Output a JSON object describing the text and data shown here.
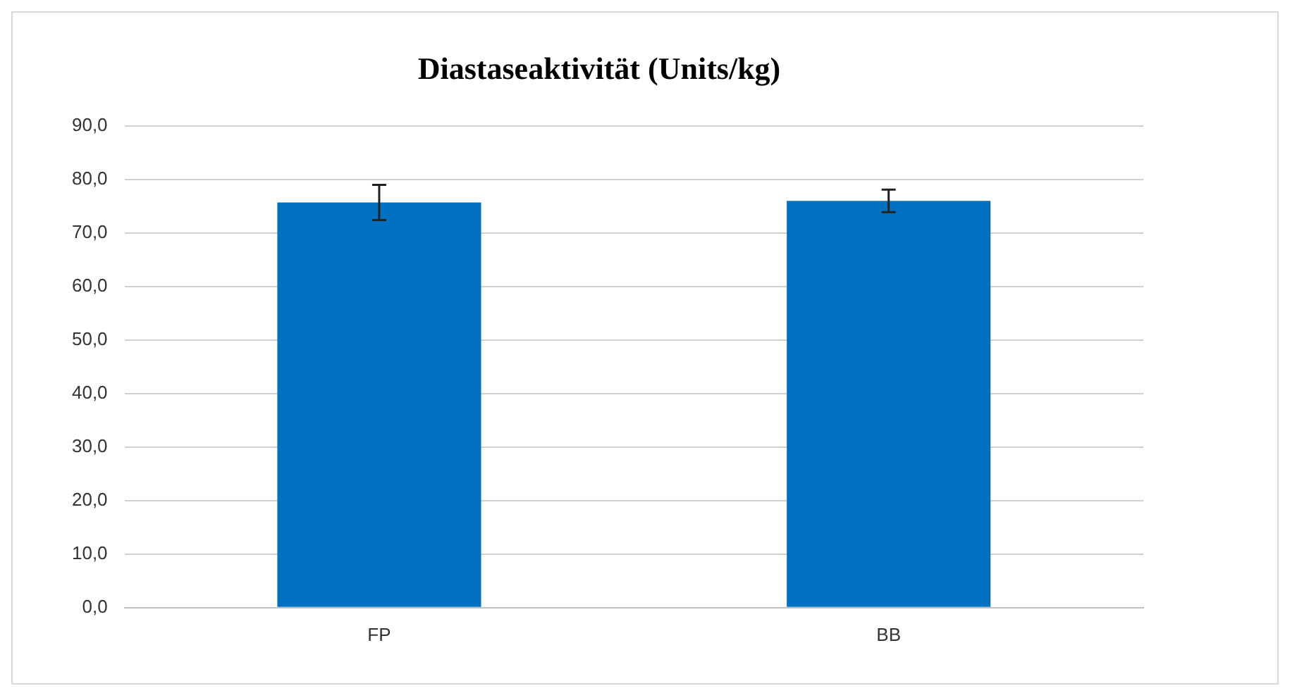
{
  "chart_data": {
    "type": "bar",
    "title": "Diastaseaktivität (Units/kg)",
    "categories": [
      "FP",
      "BB"
    ],
    "values": [
      75.7,
      76.0
    ],
    "errors": [
      3.3,
      2.1
    ],
    "color": "#0070c0",
    "ylim": [
      0,
      90
    ],
    "yticks": [
      {
        "value": 0,
        "label": "0,0"
      },
      {
        "value": 10,
        "label": "10,0"
      },
      {
        "value": 20,
        "label": "20,0"
      },
      {
        "value": 30,
        "label": "30,0"
      },
      {
        "value": 40,
        "label": "40,0"
      },
      {
        "value": 50,
        "label": "50,0"
      },
      {
        "value": 60,
        "label": "60,0"
      },
      {
        "value": 70,
        "label": "70,0"
      },
      {
        "value": 80,
        "label": "80,0"
      },
      {
        "value": 90,
        "label": "90,0"
      }
    ],
    "grid": "y",
    "legend": false
  }
}
